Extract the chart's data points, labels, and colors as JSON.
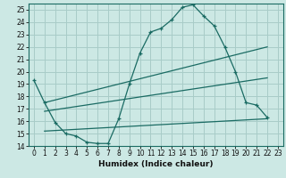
{
  "title": "",
  "xlabel": "Humidex (Indice chaleur)",
  "bg_color": "#cce8e4",
  "grid_color": "#a8ccc8",
  "line_color": "#1a6b63",
  "ylim": [
    14,
    25.5
  ],
  "xlim": [
    -0.5,
    23.5
  ],
  "yticks": [
    14,
    15,
    16,
    17,
    18,
    19,
    20,
    21,
    22,
    23,
    24,
    25
  ],
  "xticks": [
    0,
    1,
    2,
    3,
    4,
    5,
    6,
    7,
    8,
    9,
    10,
    11,
    12,
    13,
    14,
    15,
    16,
    17,
    18,
    19,
    20,
    21,
    22,
    23
  ],
  "main_curve_x": [
    0,
    1,
    2,
    3,
    4,
    5,
    6,
    7,
    8,
    9,
    10,
    11,
    12,
    13,
    14,
    15,
    16,
    17,
    18,
    19,
    20,
    21,
    22
  ],
  "main_curve_y": [
    19.3,
    17.5,
    15.9,
    15.0,
    14.8,
    14.3,
    14.2,
    14.2,
    16.2,
    19.0,
    21.5,
    23.2,
    23.5,
    24.2,
    25.2,
    25.4,
    24.5,
    23.7,
    22.0,
    20.0,
    17.5,
    17.3,
    16.3
  ],
  "line1_x": [
    1,
    22
  ],
  "line1_y": [
    17.5,
    22.0
  ],
  "line2_x": [
    1,
    22
  ],
  "line2_y": [
    16.8,
    19.5
  ],
  "line3_x": [
    1,
    22
  ],
  "line3_y": [
    15.2,
    16.2
  ]
}
